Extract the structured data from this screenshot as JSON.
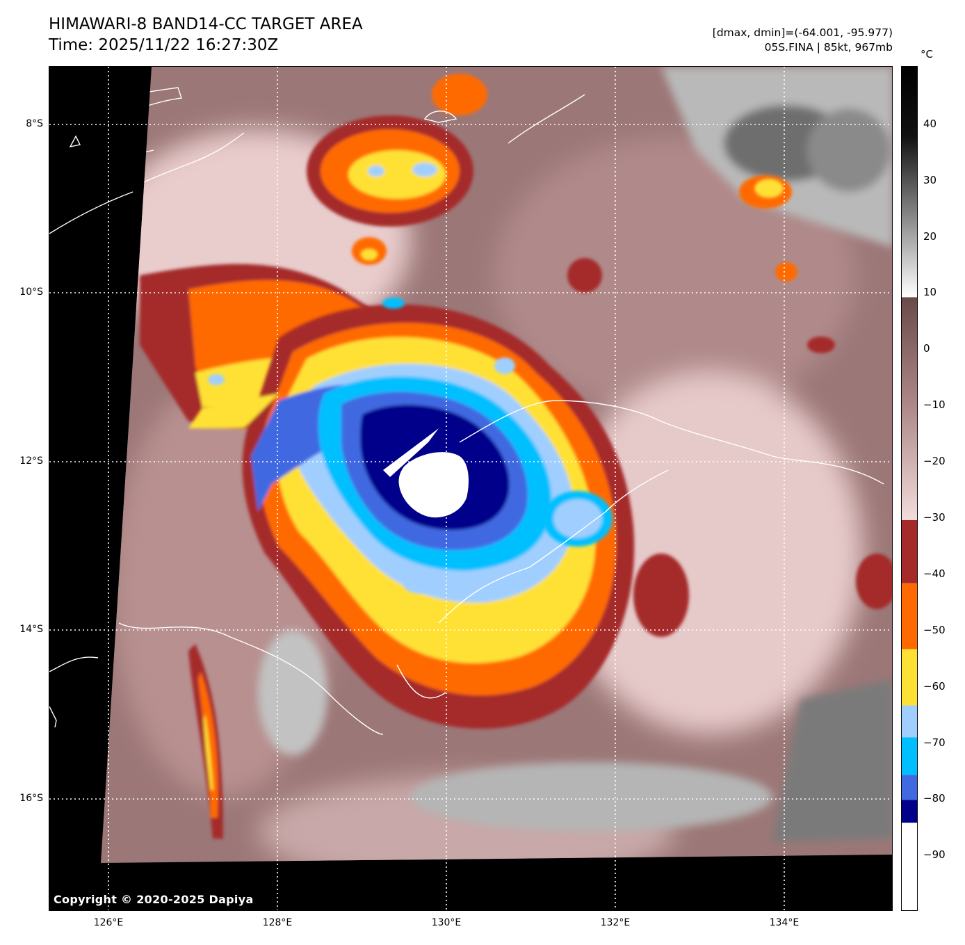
{
  "header": {
    "title_line1": "HIMAWARI-8 BAND14-CC TARGET AREA",
    "title_line2": "Time: 2025/11/22 16:27:30Z",
    "range_text": "[dmax, dmin]=(-64.001, -95.977)",
    "storm_text": "05S.FINA | 85kt, 967mb"
  },
  "map": {
    "copyright": "Copyright © 2020-2025 Dapiya",
    "lat_labels": [
      "8°S",
      "10°S",
      "12°S",
      "14°S",
      "16°S"
    ],
    "lon_labels": [
      "126°E",
      "128°E",
      "130°E",
      "132°E",
      "134°E"
    ],
    "storm_center": {
      "lat": "-12.2°",
      "lon": "129.9°"
    }
  },
  "colorbar": {
    "unit": "°C",
    "ticks": [
      "40",
      "30",
      "20",
      "10",
      "0",
      "−10",
      "−20",
      "−30",
      "−40",
      "−50",
      "−60",
      "−70",
      "−80",
      "−90"
    ],
    "palette": {
      "deep_blue": "#00008b",
      "royal_blue": "#4169e1",
      "sky_blue": "#00bfff",
      "light_blue": "#a0cfff",
      "yellow": "#ffe135",
      "orange": "#ff6a00",
      "dark_red": "#a52a2a",
      "pink_warm": "#f0d8d8",
      "mauve": "#7a5454",
      "white": "#ffffff",
      "black": "#000000"
    }
  }
}
